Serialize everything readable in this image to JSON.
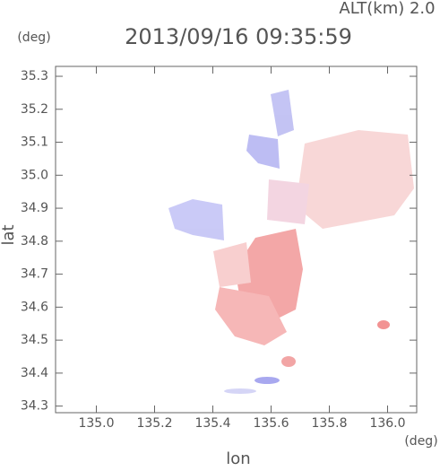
{
  "chart_data": {
    "type": "field",
    "title": "2013/09/16 09:35:59",
    "altitude_label": "ALT(km) 2.0",
    "x_label": "lon",
    "y_label": "lat",
    "x_unit": "(deg)",
    "y_unit": "(deg)",
    "xlim": [
      134.86,
      136.1
    ],
    "ylim": [
      34.28,
      35.33
    ],
    "xticks": [
      {
        "value": 135.0,
        "label": "135.0"
      },
      135.2,
      135.4,
      135.6,
      135.8,
      {
        "value": 136.0,
        "label": "136.0"
      }
    ],
    "yticks": [
      34.3,
      34.4,
      34.5,
      34.6,
      34.7,
      34.8,
      34.9,
      {
        "value": 35.0,
        "label": "35.0"
      },
      35.1,
      35.2,
      35.3
    ]
  }
}
